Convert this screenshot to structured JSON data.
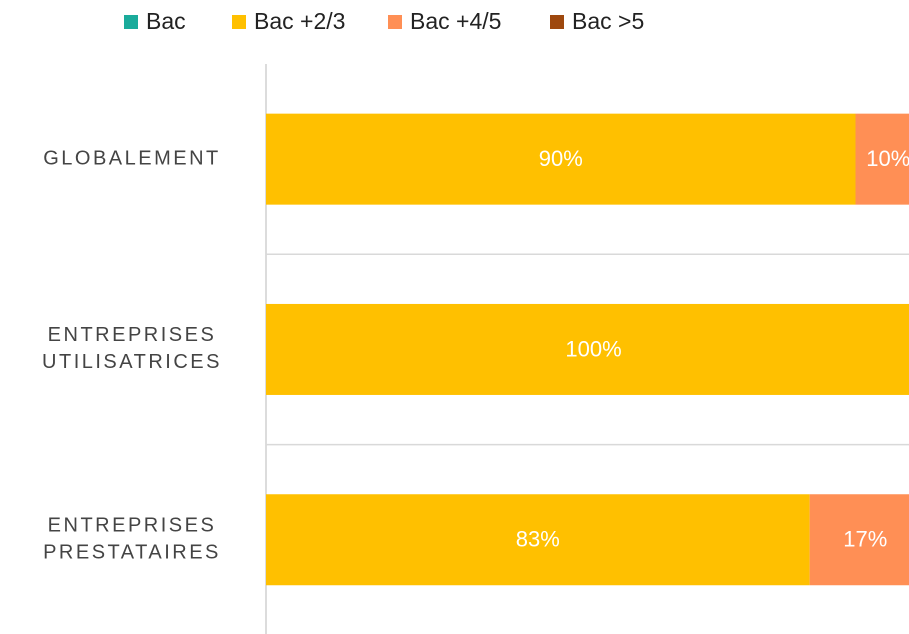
{
  "chart_data": {
    "type": "stacked-barh",
    "categories": [
      [
        "GLOBALEMENT"
      ],
      [
        "ENTREPRISES",
        "UTILISATRICES"
      ],
      [
        "ENTREPRISES",
        "PRESTATAIRES"
      ]
    ],
    "series": [
      {
        "name": "Bac",
        "color": "#1aab9b",
        "values": [
          0,
          0,
          0
        ],
        "value_labels": [
          null,
          null,
          null
        ]
      },
      {
        "name": "Bac +2/3",
        "color": "#ffc000",
        "values": [
          90,
          100,
          83
        ],
        "value_labels": [
          "90%",
          "100%",
          "83%"
        ]
      },
      {
        "name": "Bac +4/5",
        "color": "#ff8f55",
        "values": [
          10,
          0,
          17
        ],
        "value_labels": [
          "10%",
          null,
          "17%"
        ]
      },
      {
        "name": "Bac >5",
        "color": "#9e480e",
        "values": [
          0,
          0,
          0
        ],
        "value_labels": [
          null,
          null,
          null
        ]
      }
    ],
    "xlim": [
      0,
      100
    ],
    "legend": "top"
  }
}
